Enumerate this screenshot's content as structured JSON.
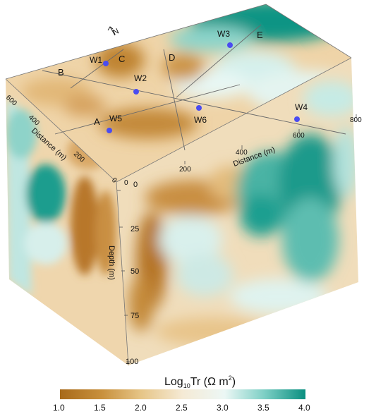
{
  "north_label": "N",
  "distance_axes": {
    "right": {
      "label": "Distance (m)",
      "ticks": [
        "0",
        "200",
        "400",
        "600",
        "800"
      ]
    },
    "left": {
      "label": "Distance (m)",
      "ticks": [
        "200",
        "400",
        "600"
      ]
    },
    "left_origin_tick": "0"
  },
  "depth_axis": {
    "label": "Depth (m)",
    "ticks": [
      "0",
      "25",
      "50",
      "75",
      "100"
    ]
  },
  "profile_lines": [
    "A",
    "B",
    "C",
    "D",
    "E"
  ],
  "wells": [
    "W1",
    "W2",
    "W3",
    "W4",
    "W5",
    "W6"
  ],
  "colorbar": {
    "title_main": "Log",
    "title_sub": "10",
    "title_rest": "Tr (Ω m",
    "title_sup": "2",
    "title_close": ")",
    "ticks": [
      "1.0",
      "1.5",
      "2.0",
      "2.5",
      "3.0",
      "3.5",
      "4.0"
    ],
    "range": [
      1.0,
      4.0
    ],
    "colors": [
      "#a86a1a",
      "#c8903c",
      "#e6c587",
      "#f5ead5",
      "#ecf7f5",
      "#7fd0c6",
      "#0a8f80"
    ]
  }
}
